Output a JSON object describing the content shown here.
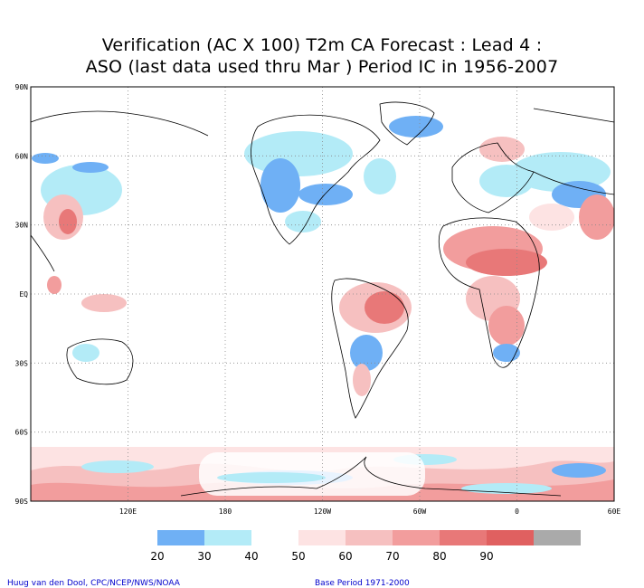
{
  "title": {
    "line1": "Verification (AC X 100) T2m CA Forecast : Lead 4 :",
    "line2": "ASO (last data used thru Mar ) Period IC in 1956-2007"
  },
  "map": {
    "lat_labels": [
      "90N",
      "60N",
      "30N",
      "EQ",
      "30S",
      "60S",
      "90S"
    ],
    "lon_labels": [
      "120E",
      "180",
      "120W",
      "60W",
      "0",
      "60E"
    ],
    "grid": true
  },
  "legend": {
    "labels": [
      "20",
      "30",
      "40",
      "50",
      "60",
      "70",
      "80",
      "90"
    ],
    "colors": [
      "#6fb0f5",
      "#b3ebf7",
      "#ffffff",
      "#fde3e3",
      "#f6c0c0",
      "#f29d9d",
      "#e87878",
      "#e06060",
      "#aaaaaa"
    ]
  },
  "credits": {
    "author": "Huug van den Dool, CPC/NCEP/NWS/NOAA",
    "base_period": "Base Period 1971-2000"
  }
}
